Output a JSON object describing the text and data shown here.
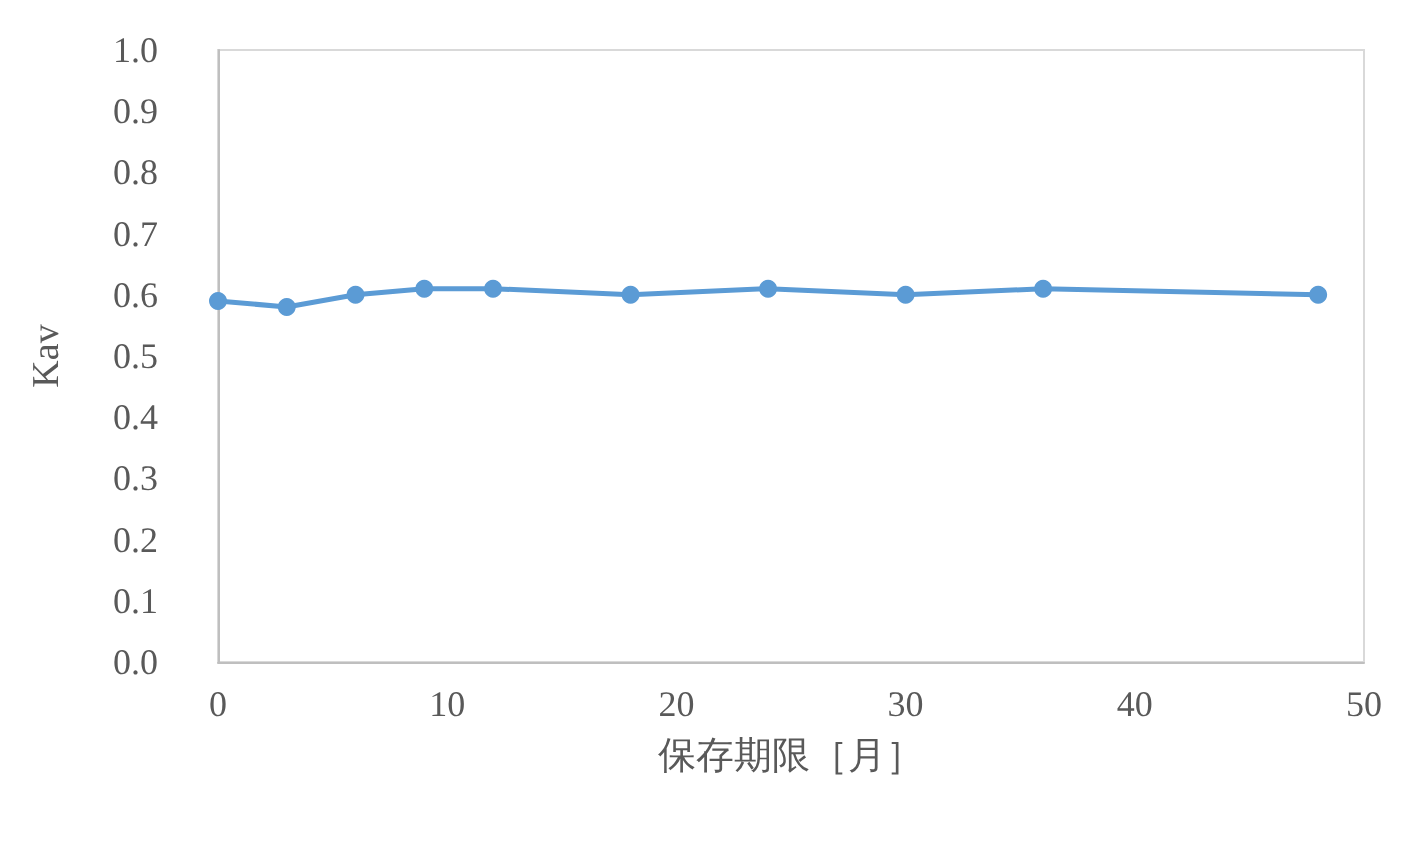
{
  "chart_data": {
    "type": "line",
    "xlabel": "保存期限［月］",
    "ylabel": "Kav",
    "x": [
      0,
      3,
      6,
      9,
      12,
      18,
      24,
      30,
      36,
      48
    ],
    "series": [
      {
        "color": "#5b9bd5",
        "values": [
          0.59,
          0.58,
          0.6,
          0.61,
          0.61,
          0.6,
          0.61,
          0.6,
          0.61,
          0.6
        ]
      }
    ],
    "xlim": [
      0,
      50
    ],
    "xticks": [
      0,
      10,
      20,
      30,
      40,
      50
    ],
    "ylim": [
      0,
      1
    ],
    "yticks": [
      {
        "value": 0,
        "label": "0.0"
      },
      0.1,
      0.2,
      0.3,
      0.4,
      0.5,
      0.6,
      0.7,
      0.8,
      0.9,
      {
        "value": 1,
        "label": "1.0"
      }
    ],
    "grid": false,
    "marker": "circle",
    "line_style": "solid"
  }
}
